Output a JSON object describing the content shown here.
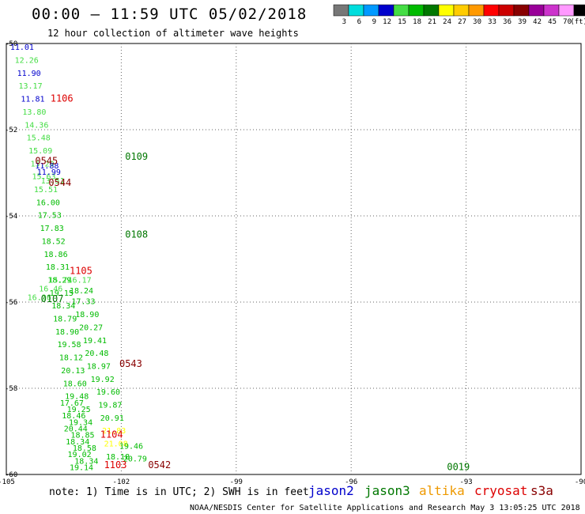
{
  "title": "00:00  –  11:59 UTC 05/02/2018",
  "subtitle": "12 hour collection of altimeter wave heights",
  "footer": "NOAA/NESDIS Center for Satellite Applications and Research    May  3 13:05:25 UTC 2018",
  "note": "note:  1)  Time is in UTC;  2)  SWH is in feet",
  "satellites": [
    {
      "name": "jason2",
      "color": "#0000cc"
    },
    {
      "name": "jason3",
      "color": "#007700"
    },
    {
      "name": "altika",
      "color": "#ee9900"
    },
    {
      "name": "cryosat",
      "color": "#dd0000"
    },
    {
      "name": "s3a",
      "color": "#880000"
    }
  ],
  "legend": {
    "unit": "(ft)",
    "bins": [
      {
        "label": "3",
        "color": "#777777"
      },
      {
        "label": "6",
        "color": "#00dddd"
      },
      {
        "label": "9",
        "color": "#0099ff"
      },
      {
        "label": "12",
        "color": "#0000cc"
      },
      {
        "label": "15",
        "color": "#44dd44"
      },
      {
        "label": "18",
        "color": "#00bb00"
      },
      {
        "label": "21",
        "color": "#007700"
      },
      {
        "label": "24",
        "color": "#ffff00"
      },
      {
        "label": "27",
        "color": "#ffcc00"
      },
      {
        "label": "30",
        "color": "#ff9900"
      },
      {
        "label": "33",
        "color": "#ff0000"
      },
      {
        "label": "36",
        "color": "#cc0000"
      },
      {
        "label": "39",
        "color": "#880000"
      },
      {
        "label": "42",
        "color": "#990099"
      },
      {
        "label": "45",
        "color": "#cc33cc"
      },
      {
        "label": "70",
        "color": "#ff99ff"
      },
      {
        "label": "",
        "color": "#000000"
      }
    ]
  },
  "chart_data": {
    "type": "scatter",
    "xlim": [
      -105,
      -90
    ],
    "ylim": [
      -60,
      -50
    ],
    "x_ticks": [
      "-105",
      "-102",
      "-99",
      "-96",
      "-93",
      "-90"
    ],
    "y_ticks": [
      "-50",
      "-52",
      "-54",
      "-56",
      "-58",
      "-60"
    ],
    "x_tick_values": [
      -105,
      -102,
      -99,
      -96,
      -93,
      -90
    ],
    "y_tick_values": [
      -50,
      -52,
      -54,
      -56,
      -58,
      -60
    ],
    "grid": true,
    "tracks": [
      {
        "name": "track-a",
        "points": [
          {
            "lon": -104.9,
            "lat": -50.15,
            "v": "11.01",
            "c": "#0000cc"
          },
          {
            "lon": -104.78,
            "lat": -50.45,
            "v": "12.26",
            "c": "#44dd44"
          },
          {
            "lon": -104.72,
            "lat": -50.75,
            "v": "11.90",
            "c": "#0000cc"
          },
          {
            "lon": -104.68,
            "lat": -51.05,
            "v": "13.17",
            "c": "#44dd44"
          },
          {
            "lon": -104.62,
            "lat": -51.35,
            "v": "11.81",
            "c": "#0000cc"
          },
          {
            "lon": -104.58,
            "lat": -51.65,
            "v": "13.80",
            "c": "#44dd44"
          },
          {
            "lon": -104.52,
            "lat": -51.95,
            "v": "14.36",
            "c": "#44dd44"
          },
          {
            "lon": -104.47,
            "lat": -52.25,
            "v": "15.48",
            "c": "#44dd44"
          },
          {
            "lon": -104.42,
            "lat": -52.55,
            "v": "15.09",
            "c": "#44dd44"
          },
          {
            "lon": -104.37,
            "lat": -52.85,
            "v": "15.29",
            "c": "#44dd44"
          },
          {
            "lon": -104.33,
            "lat": -53.15,
            "v": "15.63",
            "c": "#44dd44"
          },
          {
            "lon": -104.28,
            "lat": -53.45,
            "v": "15.51",
            "c": "#44dd44"
          },
          {
            "lon": -104.22,
            "lat": -53.75,
            "v": "16.00",
            "c": "#00bb00"
          },
          {
            "lon": -104.18,
            "lat": -54.05,
            "v": "17.53",
            "c": "#00bb00"
          },
          {
            "lon": -104.12,
            "lat": -54.35,
            "v": "17.83",
            "c": "#00bb00"
          },
          {
            "lon": -104.08,
            "lat": -54.65,
            "v": "18.52",
            "c": "#00bb00"
          },
          {
            "lon": -104.02,
            "lat": -54.95,
            "v": "18.86",
            "c": "#00bb00"
          },
          {
            "lon": -103.97,
            "lat": -55.25,
            "v": "18.31",
            "c": "#00bb00"
          },
          {
            "lon": -103.92,
            "lat": -55.55,
            "v": "18.29",
            "c": "#00bb00"
          },
          {
            "lon": -103.87,
            "lat": -55.85,
            "v": "19.15",
            "c": "#00bb00"
          },
          {
            "lon": -103.82,
            "lat": -56.15,
            "v": "18.34",
            "c": "#00bb00"
          },
          {
            "lon": -103.78,
            "lat": -56.45,
            "v": "18.79",
            "c": "#00bb00"
          },
          {
            "lon": -103.72,
            "lat": -56.75,
            "v": "18.90",
            "c": "#00bb00"
          },
          {
            "lon": -103.67,
            "lat": -57.05,
            "v": "19.58",
            "c": "#00bb00"
          },
          {
            "lon": -103.62,
            "lat": -57.35,
            "v": "18.12",
            "c": "#00bb00"
          },
          {
            "lon": -103.57,
            "lat": -57.65,
            "v": "20.13",
            "c": "#00bb00"
          },
          {
            "lon": -103.52,
            "lat": -57.95,
            "v": "18.60",
            "c": "#00bb00"
          },
          {
            "lon": -103.47,
            "lat": -58.25,
            "v": "19.48",
            "c": "#00bb00"
          },
          {
            "lon": -103.42,
            "lat": -58.55,
            "v": "19.25",
            "c": "#00bb00"
          },
          {
            "lon": -103.37,
            "lat": -58.85,
            "v": "19.34",
            "c": "#00bb00"
          },
          {
            "lon": -103.32,
            "lat": -59.15,
            "v": "18.85",
            "c": "#00bb00"
          },
          {
            "lon": -103.27,
            "lat": -59.45,
            "v": "18.58",
            "c": "#00bb00"
          },
          {
            "lon": -103.22,
            "lat": -59.75,
            "v": "18.34",
            "c": "#00bb00"
          }
        ]
      }
    ],
    "points": [
      {
        "lon": -104.25,
        "lat": -52.9,
        "v": "11.88",
        "c": "#0000cc"
      },
      {
        "lon": -104.2,
        "lat": -53.05,
        "v": "11.99",
        "c": "#0000cc"
      },
      {
        "lon": -104.1,
        "lat": -53.25,
        "v": "13.51",
        "c": "#44dd44"
      },
      {
        "lon": -104.15,
        "lat": -55.75,
        "v": "16.46",
        "c": "#44dd44"
      },
      {
        "lon": -104.45,
        "lat": -55.95,
        "v": "16.36",
        "c": "#44dd44"
      },
      {
        "lon": -103.9,
        "lat": -55.55,
        "v": "15.74",
        "c": "#44dd44"
      },
      {
        "lon": -103.4,
        "lat": -55.55,
        "v": "16.17",
        "c": "#44dd44"
      },
      {
        "lon": -103.35,
        "lat": -55.8,
        "v": "18.24",
        "c": "#00bb00"
      },
      {
        "lon": -103.3,
        "lat": -56.05,
        "v": "17.33",
        "c": "#00bb00"
      },
      {
        "lon": -103.2,
        "lat": -56.35,
        "v": "18.90",
        "c": "#00bb00"
      },
      {
        "lon": -103.1,
        "lat": -56.65,
        "v": "20.27",
        "c": "#00bb00"
      },
      {
        "lon": -103.0,
        "lat": -56.95,
        "v": "19.41",
        "c": "#00bb00"
      },
      {
        "lon": -102.95,
        "lat": -57.25,
        "v": "20.48",
        "c": "#00bb00"
      },
      {
        "lon": -102.9,
        "lat": -57.55,
        "v": "18.97",
        "c": "#00bb00"
      },
      {
        "lon": -102.8,
        "lat": -57.85,
        "v": "19.92",
        "c": "#00bb00"
      },
      {
        "lon": -102.65,
        "lat": -58.15,
        "v": "19.60",
        "c": "#00bb00"
      },
      {
        "lon": -102.6,
        "lat": -58.45,
        "v": "19.87",
        "c": "#00bb00"
      },
      {
        "lon": -102.55,
        "lat": -58.75,
        "v": "20.91",
        "c": "#00bb00"
      },
      {
        "lon": -102.5,
        "lat": -59.05,
        "v": "21.83",
        "c": "#ffff00"
      },
      {
        "lon": -102.45,
        "lat": -59.35,
        "v": "21.08",
        "c": "#ffff00"
      },
      {
        "lon": -102.4,
        "lat": -59.65,
        "v": "18.18",
        "c": "#00bb00"
      },
      {
        "lon": -103.6,
        "lat": -58.4,
        "v": "17.67",
        "c": "#00bb00"
      },
      {
        "lon": -103.55,
        "lat": -58.7,
        "v": "18.46",
        "c": "#00bb00"
      },
      {
        "lon": -103.5,
        "lat": -59.0,
        "v": "20.44",
        "c": "#00bb00"
      },
      {
        "lon": -103.45,
        "lat": -59.3,
        "v": "18.34",
        "c": "#00bb00"
      },
      {
        "lon": -103.4,
        "lat": -59.6,
        "v": "19.02",
        "c": "#00bb00"
      },
      {
        "lon": -103.35,
        "lat": -59.9,
        "v": "19.14",
        "c": "#00bb00"
      },
      {
        "lon": -102.05,
        "lat": -59.4,
        "v": "19.46",
        "c": "#00bb00"
      },
      {
        "lon": -101.95,
        "lat": -59.7,
        "v": "20.79",
        "c": "#00bb00"
      }
    ],
    "pass_labels": [
      {
        "lon": -103.85,
        "lat": -51.35,
        "label": "1106",
        "c": "#dd0000"
      },
      {
        "lon": -104.25,
        "lat": -52.8,
        "label": "0545",
        "c": "#880000"
      },
      {
        "lon": -103.9,
        "lat": -53.3,
        "label": "0544",
        "c": "#880000"
      },
      {
        "lon": -103.35,
        "lat": -55.35,
        "label": "1105",
        "c": "#dd0000"
      },
      {
        "lon": -104.1,
        "lat": -56.0,
        "label": "0107",
        "c": "#007700"
      },
      {
        "lon": -101.9,
        "lat": -52.7,
        "label": "0109",
        "c": "#007700"
      },
      {
        "lon": -101.9,
        "lat": -54.5,
        "label": "0108",
        "c": "#007700"
      },
      {
        "lon": -102.05,
        "lat": -57.5,
        "label": "0543",
        "c": "#880000"
      },
      {
        "lon": -102.55,
        "lat": -59.15,
        "label": "1104",
        "c": "#dd0000"
      },
      {
        "lon": -102.45,
        "lat": -59.85,
        "label": "1103",
        "c": "#dd0000"
      },
      {
        "lon": -101.3,
        "lat": -59.85,
        "label": "0542",
        "c": "#880000"
      },
      {
        "lon": -93.5,
        "lat": -59.9,
        "label": "0019",
        "c": "#007700"
      }
    ]
  }
}
